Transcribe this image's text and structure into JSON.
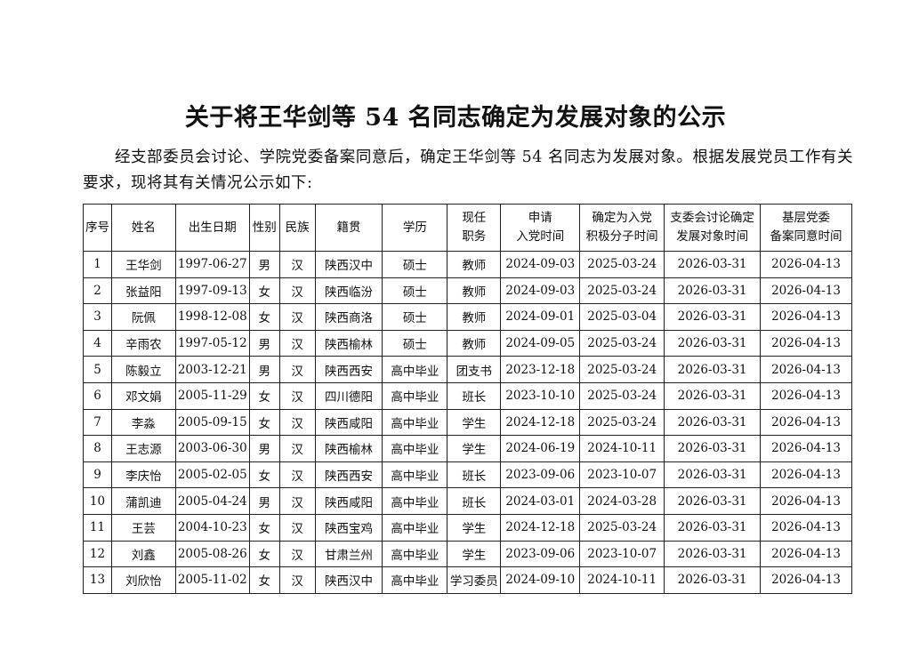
{
  "title": "关于将王华剑等 54 名同志确定为发展对象的公示",
  "paragraph": "经支部委员会讨论、学院党委备案同意后，确定王华剑等 54 名同志为发展对象。根据发展党员工作有关要求，现将其有关情况公示如下:",
  "table": {
    "headers": [
      [
        "序号"
      ],
      [
        "姓名"
      ],
      [
        "出生日期"
      ],
      [
        "性别"
      ],
      [
        "民族"
      ],
      [
        "籍贯"
      ],
      [
        "学历"
      ],
      [
        "现任",
        "职务"
      ],
      [
        "申请",
        "入党时间"
      ],
      [
        "确定为入党",
        "积极分子时间"
      ],
      [
        "支委会讨论确定",
        "发展对象时间"
      ],
      [
        "基层党委",
        "备案同意时间"
      ]
    ],
    "rows": [
      [
        "1",
        "王华剑",
        "1997-06-27",
        "男",
        "汉",
        "陕西汉中",
        "硕士",
        "教师",
        "2024-09-03",
        "2025-03-24",
        "2026-03-31",
        "2026-04-13"
      ],
      [
        "2",
        "张益阳",
        "1997-09-13",
        "女",
        "汉",
        "陕西临汾",
        "硕士",
        "教师",
        "2024-09-03",
        "2025-03-24",
        "2026-03-31",
        "2026-04-13"
      ],
      [
        "3",
        "阮佩",
        "1998-12-08",
        "女",
        "汉",
        "陕西商洛",
        "硕士",
        "教师",
        "2024-09-01",
        "2025-03-04",
        "2026-03-31",
        "2026-04-13"
      ],
      [
        "4",
        "辛雨农",
        "1997-05-12",
        "男",
        "汉",
        "陕西榆林",
        "硕士",
        "教师",
        "2024-09-05",
        "2025-03-24",
        "2026-03-31",
        "2026-04-13"
      ],
      [
        "5",
        "陈毅立",
        "2003-12-21",
        "男",
        "汉",
        "陕西西安",
        "高中毕业",
        "团支书",
        "2023-12-18",
        "2025-03-24",
        "2026-03-31",
        "2026-04-13"
      ],
      [
        "6",
        "邓文娟",
        "2005-11-29",
        "女",
        "汉",
        "四川德阳",
        "高中毕业",
        "班长",
        "2023-10-10",
        "2025-03-24",
        "2026-03-31",
        "2026-04-13"
      ],
      [
        "7",
        "李淼",
        "2005-09-15",
        "女",
        "汉",
        "陕西咸阳",
        "高中毕业",
        "学生",
        "2024-12-18",
        "2025-03-24",
        "2026-03-31",
        "2026-04-13"
      ],
      [
        "8",
        "王志源",
        "2003-06-30",
        "男",
        "汉",
        "陕西榆林",
        "高中毕业",
        "学生",
        "2024-06-19",
        "2024-10-11",
        "2026-03-31",
        "2026-04-13"
      ],
      [
        "9",
        "李庆怡",
        "2005-02-05",
        "女",
        "汉",
        "陕西西安",
        "高中毕业",
        "班长",
        "2023-09-06",
        "2023-10-07",
        "2026-03-31",
        "2026-04-13"
      ],
      [
        "10",
        "蒲凯迪",
        "2005-04-24",
        "男",
        "汉",
        "陕西咸阳",
        "高中毕业",
        "班长",
        "2024-03-01",
        "2024-03-28",
        "2026-03-31",
        "2026-04-13"
      ],
      [
        "11",
        "王芸",
        "2004-10-23",
        "女",
        "汉",
        "陕西宝鸡",
        "高中毕业",
        "学生",
        "2024-12-18",
        "2025-03-24",
        "2026-03-31",
        "2026-04-13"
      ],
      [
        "12",
        "刘鑫",
        "2005-08-26",
        "女",
        "汉",
        "甘肃兰州",
        "高中毕业",
        "学生",
        "2023-09-06",
        "2023-10-07",
        "2026-03-31",
        "2026-04-13"
      ],
      [
        "13",
        "刘欣怡",
        "2005-11-02",
        "女",
        "汉",
        "陕西汉中",
        "高中毕业",
        "学习委员",
        "2024-09-10",
        "2024-10-11",
        "2026-03-31",
        "2026-04-13"
      ]
    ]
  }
}
